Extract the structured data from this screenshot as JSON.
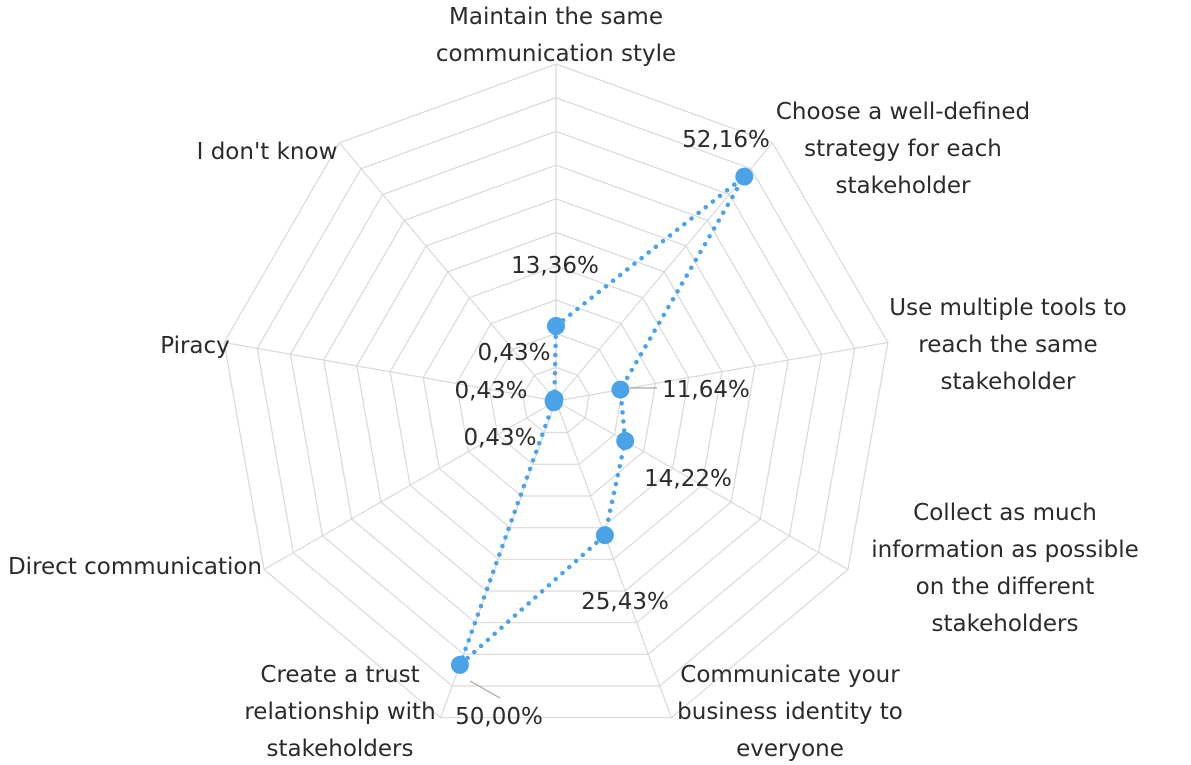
{
  "chart_data": {
    "type": "radar",
    "categories": [
      [
        "Maintain the same",
        "communication style"
      ],
      [
        "Choose a well-defined",
        "strategy for each",
        "stakeholder"
      ],
      [
        "Use multiple tools to",
        "reach the same",
        "stakeholder"
      ],
      [
        "Collect as much",
        "information as possible",
        "on the different",
        "stakeholders"
      ],
      [
        "Communicate your",
        "business identity to",
        "everyone"
      ],
      [
        "Create a trust",
        "relationship with",
        "stakeholders"
      ],
      [
        "Direct communication"
      ],
      [
        "Piracy"
      ],
      [
        "I don't know"
      ]
    ],
    "values": [
      13.36,
      52.16,
      11.64,
      14.22,
      25.43,
      50.0,
      0.43,
      0.43,
      0.43
    ],
    "data_labels": [
      "13,36%",
      "52,16%",
      "11,64%",
      "14,22%",
      "25,43%",
      "50,00%",
      "0,43%",
      "0,43%",
      "0,43%"
    ],
    "rmax": 60,
    "grid_rings": 10,
    "series_color": "#4aa3e8",
    "grid_color": "#d9d9d9",
    "legend": "none"
  }
}
